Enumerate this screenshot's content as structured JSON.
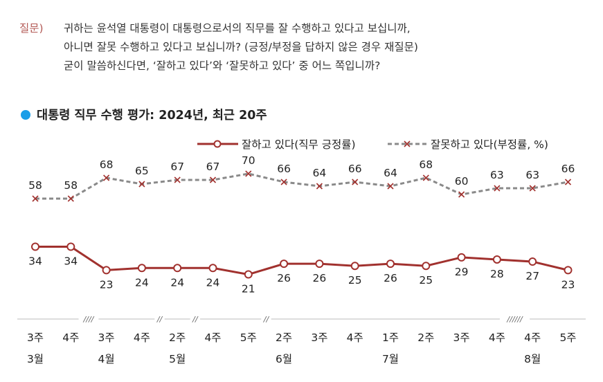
{
  "question": {
    "label": "질문)",
    "lines": [
      "귀하는 윤석열 대통령이 대통령으로서의 직무를 잘 수행하고 있다고 보십니까,",
      "아니면 잘못 수행하고 있다고 보십니까? (긍정/부정을 답하지 않은 경우 재질문)",
      "굳이 말씀하신다면, ‘잘하고 있다’와 ‘잘못하고 있다’ 중 어느 쪽입니까?"
    ]
  },
  "colors": {
    "positive": "#a1312e",
    "negative": "#8a8a8a",
    "title_dot": "#1a9ee8",
    "question_label": "#b35a56"
  },
  "chart_data": {
    "type": "line",
    "title": "대통령 직무 수행 평가: 2024년, 최근 20주",
    "xlabel": "",
    "ylabel": "",
    "legend_placement": "top-right",
    "grid": false,
    "categories": [
      "3주",
      "4주",
      "3주",
      "4주",
      "2주",
      "4주",
      "5주",
      "2주",
      "3주",
      "4주",
      "1주",
      "2주",
      "3주",
      "4주",
      "4주",
      "5주"
    ],
    "months": [
      {
        "label": "3월",
        "index": 0
      },
      {
        "label": "4월",
        "index": 2
      },
      {
        "label": "5월",
        "index": 4
      },
      {
        "label": "6월",
        "index": 7
      },
      {
        "label": "7월",
        "index": 10
      },
      {
        "label": "8월",
        "index": 14
      }
    ],
    "breaks": [
      {
        "after_index": 1,
        "marks": "////"
      },
      {
        "after_index": 3,
        "marks": "//"
      },
      {
        "after_index": 4,
        "marks": "//"
      },
      {
        "after_index": 6,
        "marks": "//"
      },
      {
        "after_index": 13,
        "marks": "//////"
      }
    ],
    "series": [
      {
        "name": "잘하고 있다(직무 긍정률)",
        "key": "positive",
        "marker": "circle",
        "values": [
          34,
          34,
          23,
          24,
          24,
          24,
          21,
          26,
          26,
          25,
          26,
          25,
          29,
          28,
          27,
          23
        ]
      },
      {
        "name": "잘못하고 있다(부정률, %)",
        "key": "negative",
        "marker": "x",
        "values": [
          58,
          58,
          68,
          65,
          67,
          67,
          70,
          66,
          64,
          66,
          64,
          68,
          60,
          63,
          63,
          66
        ]
      }
    ]
  }
}
